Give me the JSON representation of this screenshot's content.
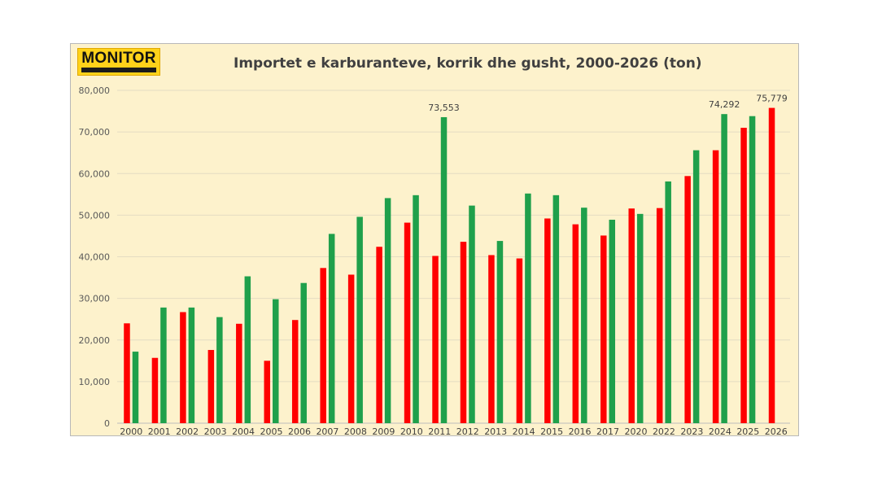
{
  "brand": {
    "logo_text": "MONITOR"
  },
  "chart_data": {
    "type": "bar",
    "title": "Importet e karburanteve, korrik dhe gusht, 2000-2026 (ton)",
    "xlabel": "",
    "ylabel": "",
    "ylim": [
      0,
      80000
    ],
    "y_ticks": [
      0,
      10000,
      20000,
      30000,
      40000,
      50000,
      60000,
      70000,
      80000
    ],
    "y_tick_labels": [
      "0",
      "10,000",
      "20,000",
      "30,000",
      "40,000",
      "50,000",
      "60,000",
      "70,000",
      "80,000"
    ],
    "grid": true,
    "categories": [
      "2000",
      "2001",
      "2002",
      "2003",
      "2004",
      "2005",
      "2006",
      "2007",
      "2008",
      "2009",
      "2010",
      "2011",
      "2012",
      "2013",
      "2014",
      "2015",
      "2016",
      "2017",
      "2020",
      "2022",
      "2023",
      "2024",
      "2025",
      "2026"
    ],
    "series": [
      {
        "color": "#ff0000",
        "values": [
          24000,
          15700,
          26700,
          17600,
          23900,
          15000,
          24800,
          37300,
          35700,
          42400,
          48200,
          40200,
          43600,
          40400,
          39600,
          49200,
          47800,
          45100,
          51600,
          51700,
          59400,
          65600,
          71000,
          75779
        ]
      },
      {
        "color": "#1fa04b",
        "values": [
          17200,
          27800,
          27800,
          25500,
          35300,
          29800,
          33700,
          45500,
          49600,
          54100,
          54800,
          73553,
          52300,
          43800,
          55200,
          54800,
          51800,
          48900,
          50300,
          58100,
          65600,
          74292,
          73800,
          null
        ]
      }
    ],
    "data_labels": [
      {
        "category": "2011",
        "series": 1,
        "text": "73,553"
      },
      {
        "category": "2024",
        "series": 1,
        "text": "74,292"
      },
      {
        "category": "2026",
        "series": 0,
        "text": "75,779"
      }
    ]
  }
}
